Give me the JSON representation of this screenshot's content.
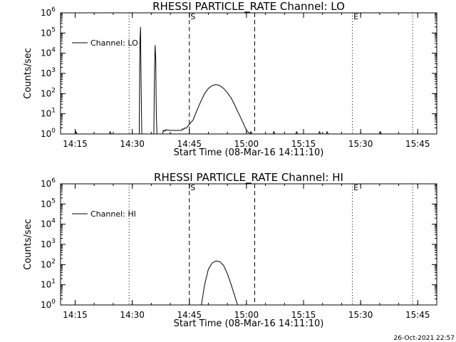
{
  "timestamp": "26-Oct-2021 22:57",
  "chart_data": [
    {
      "type": "line",
      "title": "RHESSI PARTICLE_RATE Channel: LO",
      "xlabel": "Start Time (08-Mar-16 14:11:10)",
      "ylabel": "Counts/sec",
      "x_tick_labels": [
        "14:15",
        "14:30",
        "14:45",
        "15:00",
        "15:15",
        "15:30",
        "15:45"
      ],
      "y_tick_labels": [
        {
          "base": "10",
          "exp": "0"
        },
        {
          "base": "10",
          "exp": "1"
        },
        {
          "base": "10",
          "exp": "2"
        },
        {
          "base": "10",
          "exp": "3"
        },
        {
          "base": "10",
          "exp": "4"
        },
        {
          "base": "10",
          "exp": "5"
        },
        {
          "base": "10",
          "exp": "6"
        }
      ],
      "y_scale": "log",
      "ylim": [
        1,
        1000000
      ],
      "xlim": [
        "14:11:10",
        "15:50:00"
      ],
      "legend": {
        "label": "Channel: LO",
        "position": "top-left"
      },
      "markers": [
        {
          "time": "14:45:00",
          "label": "S",
          "style": "dashed"
        },
        {
          "time": "15:02:10",
          "label": "",
          "style": "dashed"
        },
        {
          "time": "14:29:10",
          "label": "",
          "style": "dotted"
        },
        {
          "time": "15:27:50",
          "label": "E",
          "style": "dotted"
        },
        {
          "time": "15:43:40",
          "label": "",
          "style": "dotted"
        }
      ],
      "series": [
        {
          "name": "Channel: LO",
          "points": [
            [
              "14:11:10",
              1
            ],
            [
              "14:15:00",
              1
            ],
            [
              "14:15:10",
              1.3
            ],
            [
              "14:15:30",
              1
            ],
            [
              "14:24:00",
              1
            ],
            [
              "14:24:10",
              1.3
            ],
            [
              "14:24:30",
              1
            ],
            [
              "14:31:50",
              1
            ],
            [
              "14:32:00",
              30000
            ],
            [
              "14:32:10",
              200000
            ],
            [
              "14:32:20",
              200
            ],
            [
              "14:32:30",
              1
            ],
            [
              "14:35:40",
              1
            ],
            [
              "14:35:50",
              800
            ],
            [
              "14:36:00",
              25000
            ],
            [
              "14:36:10",
              5000
            ],
            [
              "14:36:20",
              10
            ],
            [
              "14:36:30",
              1
            ],
            [
              "14:38:00",
              1
            ],
            [
              "14:38:10",
              1.5
            ],
            [
              "14:38:20",
              1.4
            ],
            [
              "14:38:30",
              1.5
            ],
            [
              "14:38:40",
              1.4
            ],
            [
              "14:38:50",
              1.6
            ],
            [
              "14:40:00",
              1.5
            ],
            [
              "14:43:00",
              1.5
            ],
            [
              "14:43:10",
              1.8
            ],
            [
              "14:43:30",
              1.7
            ],
            [
              "14:43:50",
              2
            ],
            [
              "14:44:10",
              1.9
            ],
            [
              "14:44:30",
              2.3
            ],
            [
              "14:45:00",
              3
            ],
            [
              "14:46:00",
              5
            ],
            [
              "14:47:00",
              15
            ],
            [
              "14:48:00",
              40
            ],
            [
              "14:49:00",
              100
            ],
            [
              "14:50:00",
              180
            ],
            [
              "14:51:00",
              250
            ],
            [
              "14:52:00",
              280
            ],
            [
              "14:53:00",
              250
            ],
            [
              "14:54:00",
              180
            ],
            [
              "14:55:00",
              110
            ],
            [
              "14:56:00",
              60
            ],
            [
              "14:57:00",
              25
            ],
            [
              "14:58:00",
              10
            ],
            [
              "14:59:00",
              4
            ],
            [
              "15:00:00",
              1.5
            ],
            [
              "15:01:00",
              1
            ],
            [
              "15:01:10",
              1.3
            ],
            [
              "15:01:30",
              1
            ],
            [
              "15:07:00",
              1
            ],
            [
              "15:07:10",
              1.3
            ],
            [
              "15:07:30",
              1
            ],
            [
              "15:13:00",
              1
            ],
            [
              "15:13:10",
              1.3
            ],
            [
              "15:13:30",
              1
            ],
            [
              "15:19:00",
              1
            ],
            [
              "15:19:10",
              1.3
            ],
            [
              "15:19:30",
              1
            ],
            [
              "15:21:00",
              1
            ],
            [
              "15:21:10",
              1.3
            ],
            [
              "15:21:30",
              1
            ],
            [
              "15:35:00",
              1
            ],
            [
              "15:35:10",
              1.3
            ],
            [
              "15:35:30",
              1
            ],
            [
              "15:50:00",
              1
            ]
          ]
        }
      ]
    },
    {
      "type": "line",
      "title": "RHESSI PARTICLE_RATE Channel: HI",
      "xlabel": "Start Time (08-Mar-16 14:11:10)",
      "ylabel": "Counts/sec",
      "x_tick_labels": [
        "14:15",
        "14:30",
        "14:45",
        "15:00",
        "15:15",
        "15:30",
        "15:45"
      ],
      "y_tick_labels": [
        {
          "base": "10",
          "exp": "0"
        },
        {
          "base": "10",
          "exp": "1"
        },
        {
          "base": "10",
          "exp": "2"
        },
        {
          "base": "10",
          "exp": "3"
        },
        {
          "base": "10",
          "exp": "4"
        },
        {
          "base": "10",
          "exp": "5"
        },
        {
          "base": "10",
          "exp": "6"
        }
      ],
      "y_scale": "log",
      "ylim": [
        1,
        1000000
      ],
      "xlim": [
        "14:11:10",
        "15:50:00"
      ],
      "legend": {
        "label": "Channel: HI",
        "position": "top-left"
      },
      "markers": [
        {
          "time": "14:45:00",
          "label": "S",
          "style": "dashed"
        },
        {
          "time": "15:02:10",
          "label": "",
          "style": "dashed"
        },
        {
          "time": "14:29:10",
          "label": "",
          "style": "dotted"
        },
        {
          "time": "15:27:50",
          "label": "E",
          "style": "dotted"
        },
        {
          "time": "15:43:40",
          "label": "",
          "style": "dotted"
        }
      ],
      "series": [
        {
          "name": "Channel: HI",
          "points": [
            [
              "14:48:10",
              1
            ],
            [
              "14:49:00",
              10
            ],
            [
              "14:50:00",
              60
            ],
            [
              "14:51:00",
              120
            ],
            [
              "14:52:00",
              150
            ],
            [
              "14:53:00",
              140
            ],
            [
              "14:54:00",
              90
            ],
            [
              "14:55:00",
              35
            ],
            [
              "14:56:00",
              10
            ],
            [
              "14:57:00",
              2.5
            ],
            [
              "14:57:40",
              1
            ]
          ]
        }
      ]
    }
  ]
}
